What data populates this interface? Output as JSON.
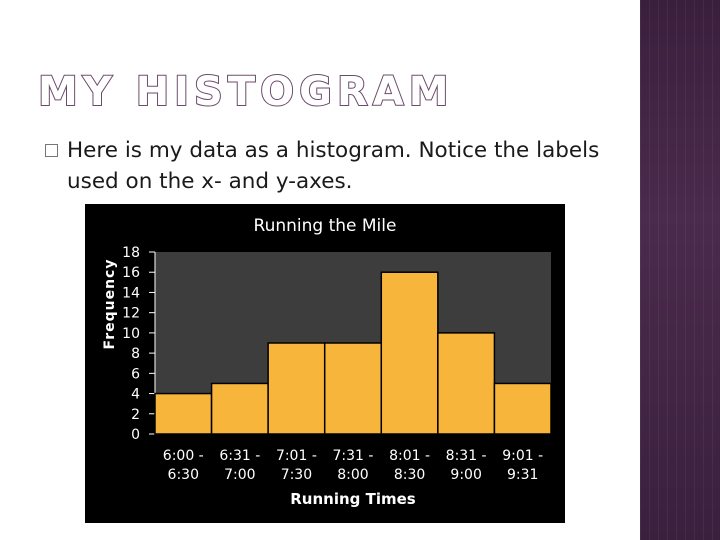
{
  "slide": {
    "title": "MY HISTOGRAM",
    "bullet_text": "Here is my data as a histogram.  Notice the labels used on the x- and y-axes."
  },
  "colors": {
    "bar_fill": "#f8b53c",
    "plot_bg": "#3d3d3d",
    "chart_bg": "#000000",
    "text": "#ffffff",
    "side_band": "#3f2341"
  },
  "chart_data": {
    "type": "bar",
    "title": "Running the Mile",
    "xlabel": "Running Times",
    "ylabel": "Frequency",
    "categories": [
      [
        "6:00 -",
        "6:30"
      ],
      [
        "6:31 -",
        "7:00"
      ],
      [
        "7:01 -",
        "7:30"
      ],
      [
        "7:31 -",
        "8:00"
      ],
      [
        "8:01 -",
        "8:30"
      ],
      [
        "8:31 -",
        "9:00"
      ],
      [
        "9:01 -",
        "9:31"
      ]
    ],
    "values": [
      4,
      5,
      9,
      9,
      16,
      10,
      5
    ],
    "ylim": [
      0,
      18
    ],
    "yticks": [
      0,
      2,
      4,
      6,
      8,
      10,
      12,
      14,
      16,
      18
    ],
    "grid": false,
    "legend": "none"
  }
}
